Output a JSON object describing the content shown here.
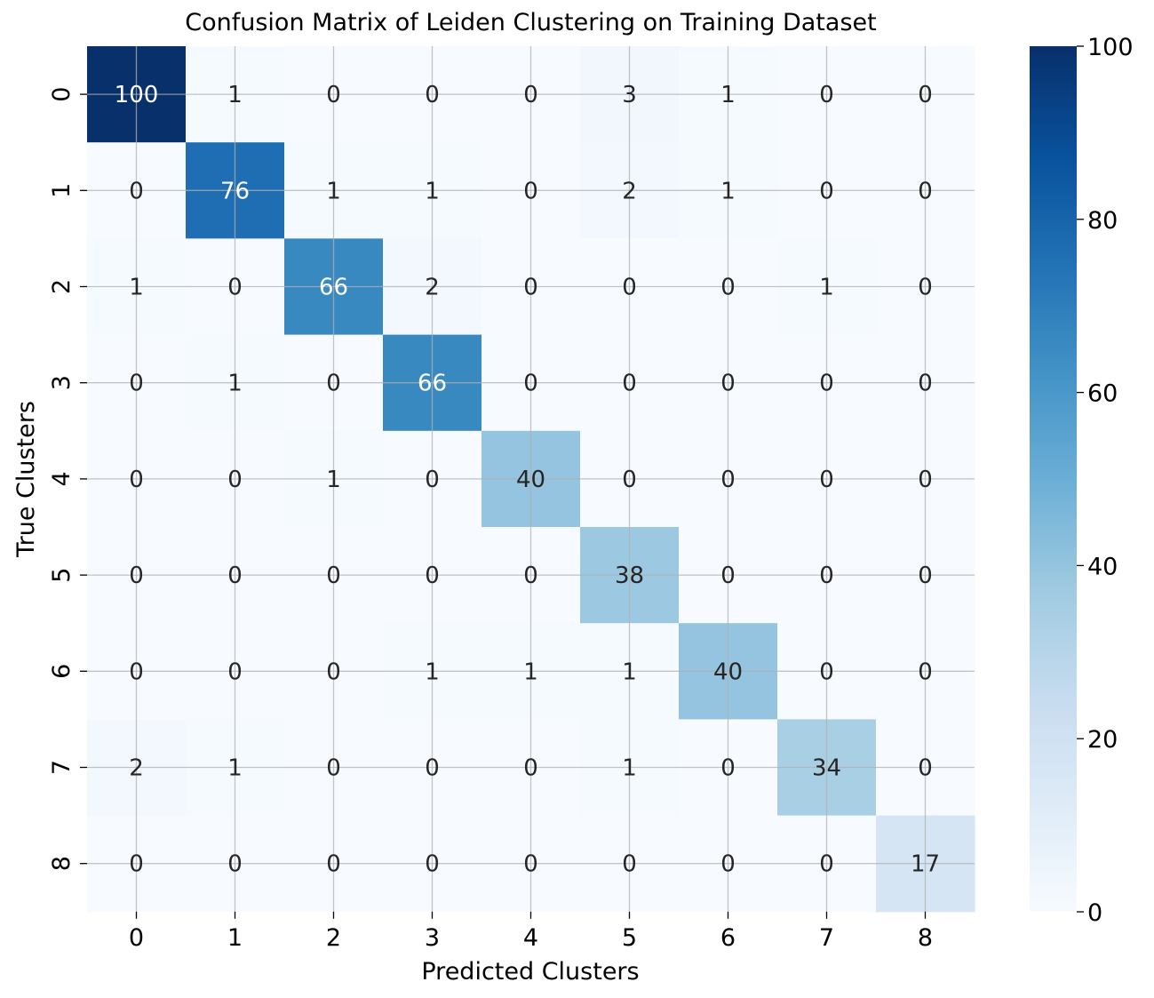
{
  "chart_data": {
    "type": "heatmap",
    "title": "Confusion Matrix of Leiden Clustering on Training Dataset",
    "xlabel": "Predicted Clusters",
    "ylabel": "True Clusters",
    "x_categories": [
      "0",
      "1",
      "2",
      "3",
      "4",
      "5",
      "6",
      "7",
      "8"
    ],
    "y_categories": [
      "0",
      "1",
      "2",
      "3",
      "4",
      "5",
      "6",
      "7",
      "8"
    ],
    "values": [
      [
        100,
        1,
        0,
        0,
        0,
        3,
        1,
        0,
        0
      ],
      [
        0,
        76,
        1,
        1,
        0,
        2,
        1,
        0,
        0
      ],
      [
        1,
        0,
        66,
        2,
        0,
        0,
        0,
        1,
        0
      ],
      [
        0,
        1,
        0,
        66,
        0,
        0,
        0,
        0,
        0
      ],
      [
        0,
        0,
        1,
        0,
        40,
        0,
        0,
        0,
        0
      ],
      [
        0,
        0,
        0,
        0,
        0,
        38,
        0,
        0,
        0
      ],
      [
        0,
        0,
        0,
        1,
        1,
        1,
        40,
        0,
        0
      ],
      [
        2,
        1,
        0,
        0,
        0,
        1,
        0,
        34,
        0
      ],
      [
        0,
        0,
        0,
        0,
        0,
        0,
        0,
        0,
        17
      ]
    ],
    "colorbar": {
      "min": 0,
      "max": 100,
      "ticks": [
        0,
        20,
        40,
        60,
        80,
        100
      ]
    },
    "colormap": "Blues",
    "grid": true,
    "annotations": true
  }
}
